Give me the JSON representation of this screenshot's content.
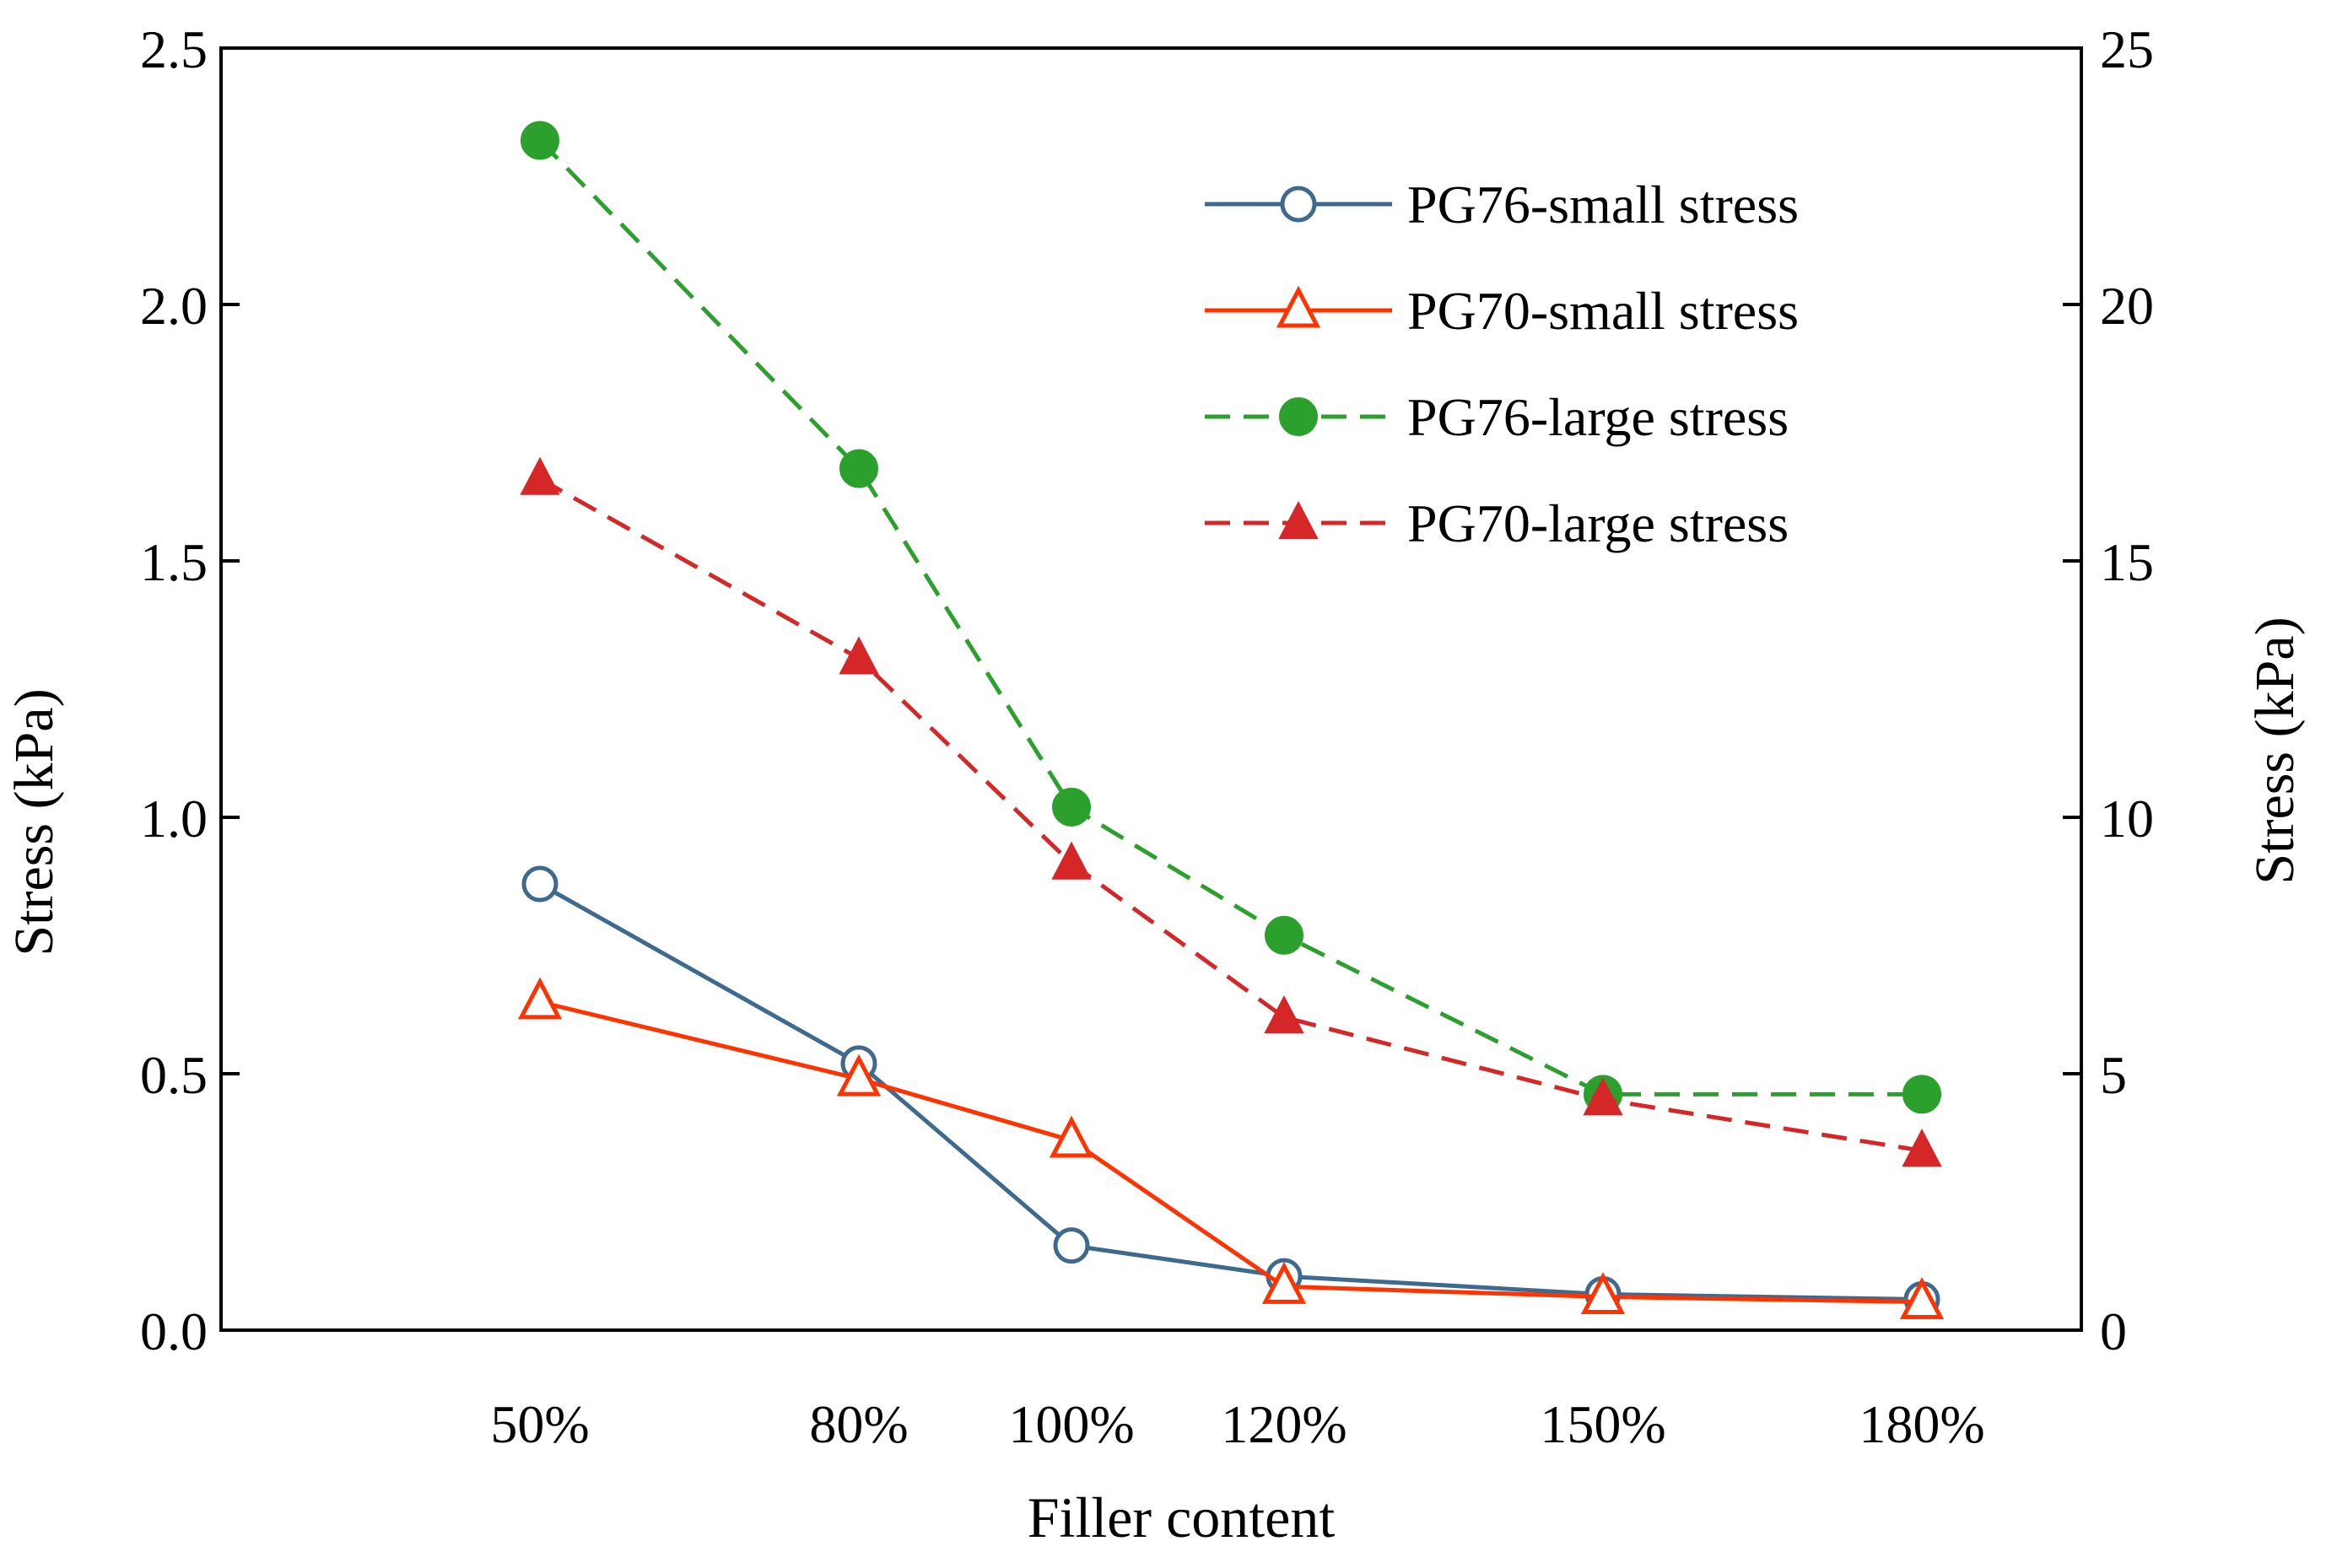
{
  "chart_data": {
    "type": "line",
    "title": "",
    "xlabel": "Filler content",
    "ylabel_left": "Stress (kPa)",
    "ylabel_right": "Stress (kPa)",
    "categories": [
      "50%",
      "80%",
      "100%",
      "120%",
      "150%",
      "180%"
    ],
    "x_numeric": [
      50,
      80,
      100,
      120,
      150,
      180
    ],
    "xlim": [
      20,
      195
    ],
    "ylim_left": [
      0,
      2.5
    ],
    "ylim_right": [
      0,
      25
    ],
    "yticks_left": [
      "0.0",
      "0.5",
      "1.0",
      "1.5",
      "2.0",
      "2.5"
    ],
    "yticks_right": [
      "0",
      "5",
      "10",
      "15",
      "20",
      "25"
    ],
    "grid": false,
    "legend_position": "top-right",
    "series": [
      {
        "name": "PG76-small stress",
        "axis": "left",
        "marker": "circle-open",
        "line": "solid",
        "color": "#3d6a8e",
        "values": [
          0.87,
          0.52,
          0.165,
          0.105,
          0.07,
          0.06
        ]
      },
      {
        "name": "PG70-small stress",
        "axis": "left",
        "marker": "triangle-open",
        "line": "solid",
        "color": "#ff3300",
        "values": [
          0.64,
          0.49,
          0.37,
          0.085,
          0.065,
          0.055
        ]
      },
      {
        "name": "PG76-large stress",
        "axis": "right",
        "marker": "circle-filled",
        "line": "dashed",
        "color": "#2ca02c",
        "values": [
          23.2,
          16.8,
          10.2,
          7.7,
          4.6,
          4.6
        ]
      },
      {
        "name": "PG70-large stress",
        "axis": "right",
        "marker": "triangle-filled",
        "line": "dashed",
        "color": "#d62728",
        "values": [
          16.6,
          13.1,
          9.1,
          6.1,
          4.5,
          3.5
        ]
      }
    ]
  }
}
